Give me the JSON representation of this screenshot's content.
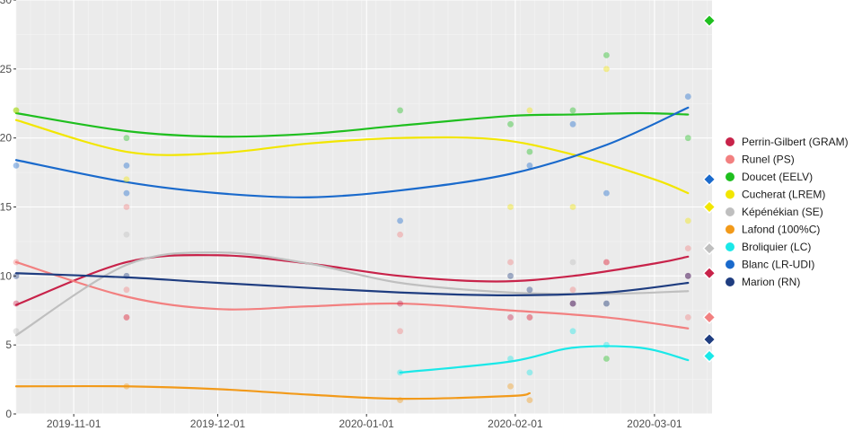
{
  "chart_data": {
    "type": "scatter",
    "title": "",
    "xlabel": "",
    "ylabel": "",
    "xlim": [
      "2019-10-20",
      "2020-03-13"
    ],
    "ylim": [
      0,
      30
    ],
    "grid": true,
    "legend_position": "right",
    "x_ticks": [
      "2019-11-01",
      "2019-12-01",
      "2020-01-01",
      "2020-02-01",
      "2020-03-01"
    ],
    "y_ticks": [
      0,
      5,
      10,
      15,
      20,
      25,
      30
    ],
    "series": [
      {
        "name": "Perrin-Gilbert (GRAM)",
        "color": "#C8234A",
        "points": [
          [
            "2019-10-20",
            8
          ],
          [
            "2019-11-12",
            7
          ],
          [
            "2020-01-08",
            8
          ],
          [
            "2020-01-31",
            7
          ],
          [
            "2020-02-04",
            7
          ],
          [
            "2020-02-13",
            8
          ],
          [
            "2020-02-20",
            11
          ],
          [
            "2020-03-08",
            10
          ]
        ],
        "trend": [
          [
            "2019-10-20",
            7.9
          ],
          [
            "2019-11-12",
            11.0
          ],
          [
            "2019-12-01",
            11.5
          ],
          [
            "2019-12-20",
            10.9
          ],
          [
            "2020-01-08",
            10.0
          ],
          [
            "2020-01-28",
            9.6
          ],
          [
            "2020-02-13",
            10.0
          ],
          [
            "2020-03-01",
            10.9
          ],
          [
            "2020-03-08",
            11.4
          ]
        ],
        "final": 10.2
      },
      {
        "name": "Runel (PS)",
        "color": "#F28080",
        "points": [
          [
            "2019-10-20",
            11
          ],
          [
            "2019-11-12",
            15
          ],
          [
            "2019-11-12",
            9
          ],
          [
            "2019-11-12",
            7
          ],
          [
            "2020-01-08",
            13
          ],
          [
            "2020-01-08",
            6
          ],
          [
            "2020-01-31",
            11
          ],
          [
            "2020-02-04",
            7
          ],
          [
            "2020-02-13",
            9
          ],
          [
            "2020-02-20",
            11
          ],
          [
            "2020-03-08",
            12
          ],
          [
            "2020-03-08",
            7
          ]
        ],
        "trend": [
          [
            "2019-10-20",
            11.0
          ],
          [
            "2019-11-12",
            8.5
          ],
          [
            "2019-12-01",
            7.6
          ],
          [
            "2019-12-20",
            7.8
          ],
          [
            "2020-01-08",
            8.0
          ],
          [
            "2020-01-31",
            7.5
          ],
          [
            "2020-02-20",
            7.0
          ],
          [
            "2020-03-08",
            6.2
          ]
        ],
        "final": 7.0
      },
      {
        "name": "Doucet (EELV)",
        "color": "#1FBF1F",
        "points": [
          [
            "2019-10-20",
            22
          ],
          [
            "2019-11-12",
            20
          ],
          [
            "2020-01-08",
            22
          ],
          [
            "2020-01-31",
            21
          ],
          [
            "2020-02-04",
            19
          ],
          [
            "2020-02-13",
            22
          ],
          [
            "2020-02-20",
            26
          ],
          [
            "2020-02-20",
            4
          ],
          [
            "2020-03-08",
            20
          ]
        ],
        "trend": [
          [
            "2019-10-20",
            21.8
          ],
          [
            "2019-11-12",
            20.5
          ],
          [
            "2019-12-01",
            20.1
          ],
          [
            "2019-12-20",
            20.3
          ],
          [
            "2020-01-08",
            20.9
          ],
          [
            "2020-01-31",
            21.6
          ],
          [
            "2020-02-13",
            21.7
          ],
          [
            "2020-02-27",
            21.8
          ],
          [
            "2020-03-08",
            21.7
          ]
        ],
        "final": 28.5
      },
      {
        "name": "Cucherat (LREM)",
        "color": "#F2E600",
        "points": [
          [
            "2019-10-20",
            22
          ],
          [
            "2019-11-12",
            17
          ],
          [
            "2020-01-31",
            15
          ],
          [
            "2020-02-04",
            22
          ],
          [
            "2020-02-13",
            15
          ],
          [
            "2020-02-20",
            25
          ],
          [
            "2020-03-08",
            14
          ]
        ],
        "trend": [
          [
            "2019-10-20",
            21.3
          ],
          [
            "2019-11-12",
            19.0
          ],
          [
            "2019-12-01",
            18.9
          ],
          [
            "2019-12-20",
            19.6
          ],
          [
            "2020-01-08",
            20.0
          ],
          [
            "2020-01-28",
            19.9
          ],
          [
            "2020-02-13",
            18.8
          ],
          [
            "2020-03-01",
            17.0
          ],
          [
            "2020-03-08",
            16.0
          ]
        ],
        "final": 15.0
      },
      {
        "name": "Képénékian (SE)",
        "color": "#BFBFBF",
        "points": [
          [
            "2019-10-20",
            6
          ],
          [
            "2019-11-12",
            13
          ],
          [
            "2020-02-13",
            11
          ],
          [
            "2020-02-20",
            8
          ]
        ],
        "trend": [
          [
            "2019-10-20",
            5.7
          ],
          [
            "2019-11-12",
            10.8
          ],
          [
            "2019-12-01",
            11.7
          ],
          [
            "2019-12-20",
            10.9
          ],
          [
            "2020-01-08",
            9.5
          ],
          [
            "2020-01-31",
            8.8
          ],
          [
            "2020-02-20",
            8.7
          ],
          [
            "2020-03-08",
            8.9
          ]
        ],
        "final": 12.0
      },
      {
        "name": "Lafond (100%C)",
        "color": "#F29A1A",
        "points": [
          [
            "2019-11-12",
            2
          ],
          [
            "2020-01-08",
            1
          ],
          [
            "2020-01-31",
            2
          ],
          [
            "2020-02-04",
            1
          ]
        ],
        "trend": [
          [
            "2019-10-20",
            2.0
          ],
          [
            "2019-11-12",
            2.0
          ],
          [
            "2019-12-01",
            1.8
          ],
          [
            "2019-12-20",
            1.4
          ],
          [
            "2020-01-08",
            1.1
          ],
          [
            "2020-01-31",
            1.3
          ],
          [
            "2020-02-04",
            1.5
          ]
        ],
        "final": null
      },
      {
        "name": "Broliquier (LC)",
        "color": "#1AE8E8",
        "points": [
          [
            "2020-01-08",
            3
          ],
          [
            "2020-01-31",
            4
          ],
          [
            "2020-02-04",
            3
          ],
          [
            "2020-02-13",
            6
          ],
          [
            "2020-02-20",
            5
          ]
        ],
        "trend": [
          [
            "2020-01-08",
            3.0
          ],
          [
            "2020-01-31",
            3.8
          ],
          [
            "2020-02-13",
            4.8
          ],
          [
            "2020-02-27",
            4.8
          ],
          [
            "2020-03-08",
            3.9
          ]
        ],
        "final": 4.2
      },
      {
        "name": "Blanc (LR-UDI)",
        "color": "#1A6ACC",
        "points": [
          [
            "2019-10-20",
            18
          ],
          [
            "2019-11-12",
            18
          ],
          [
            "2019-11-12",
            16
          ],
          [
            "2020-01-08",
            14
          ],
          [
            "2020-02-04",
            18
          ],
          [
            "2020-02-13",
            21
          ],
          [
            "2020-02-20",
            16
          ],
          [
            "2020-03-08",
            23
          ]
        ],
        "trend": [
          [
            "2019-10-20",
            18.4
          ],
          [
            "2019-11-12",
            16.8
          ],
          [
            "2019-12-01",
            16.0
          ],
          [
            "2019-12-20",
            15.7
          ],
          [
            "2020-01-08",
            16.2
          ],
          [
            "2020-01-31",
            17.4
          ],
          [
            "2020-02-20",
            19.5
          ],
          [
            "2020-03-08",
            22.2
          ]
        ],
        "final": 17.0
      },
      {
        "name": "Marion (RN)",
        "color": "#1F3D80",
        "points": [
          [
            "2019-10-20",
            10
          ],
          [
            "2019-11-12",
            10
          ],
          [
            "2020-01-31",
            10
          ],
          [
            "2020-02-04",
            9
          ],
          [
            "2020-02-13",
            8
          ],
          [
            "2020-02-20",
            8
          ],
          [
            "2020-03-08",
            10
          ]
        ],
        "trend": [
          [
            "2019-10-20",
            10.2
          ],
          [
            "2019-11-12",
            9.9
          ],
          [
            "2019-12-01",
            9.5
          ],
          [
            "2020-01-08",
            8.8
          ],
          [
            "2020-01-31",
            8.6
          ],
          [
            "2020-02-20",
            8.8
          ],
          [
            "2020-03-08",
            9.5
          ]
        ],
        "final": 5.4
      }
    ]
  }
}
